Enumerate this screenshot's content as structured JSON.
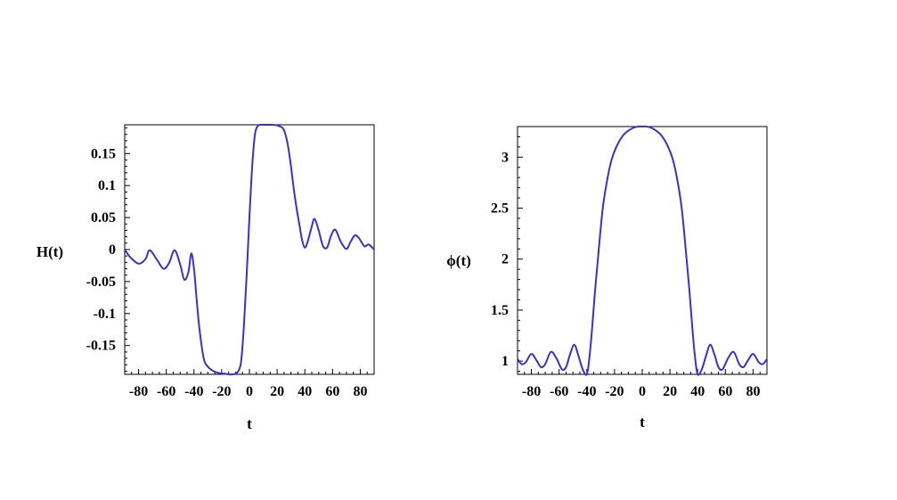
{
  "chart_data": [
    {
      "type": "line",
      "title": "",
      "xlabel": "t",
      "ylabel": "H(t)",
      "xlim": [
        -90,
        90
      ],
      "ylim": [
        -0.195,
        0.195
      ],
      "x_ticks": [
        -80,
        -60,
        -40,
        -20,
        0,
        20,
        40,
        60,
        80
      ],
      "x_tick_labels": [
        "-80",
        "-60",
        "-40",
        "-20",
        "0",
        "20",
        "40",
        "60",
        "80"
      ],
      "y_ticks": [
        -0.15,
        -0.1,
        -0.05,
        0,
        0.05,
        0.1,
        0.15
      ],
      "y_tick_labels": [
        "-0.15",
        "-0.1",
        "-0.05",
        "0",
        "0.05",
        "0.1",
        "0.15"
      ],
      "grid": false,
      "line_color": "#3b2fd0",
      "series": [
        {
          "x": [
            -90,
            -86,
            -80,
            -75,
            -72,
            -67,
            -62,
            -58,
            -54,
            -50,
            -47,
            -44,
            -42,
            -40,
            -38,
            -36,
            -33,
            -30,
            -26,
            -22,
            -18,
            -15,
            -12,
            -10,
            -8,
            -6,
            -4,
            -2,
            0,
            2,
            4,
            6,
            8,
            12,
            16,
            20,
            24,
            26,
            28,
            30,
            32,
            34,
            36,
            38,
            40,
            42,
            45,
            47,
            50,
            53,
            56,
            59,
            62,
            66,
            70,
            73,
            76,
            79,
            83,
            86,
            90
          ],
          "y": [
            0.0,
            -0.012,
            -0.022,
            -0.015,
            -0.001,
            -0.015,
            -0.03,
            -0.021,
            -0.001,
            -0.023,
            -0.047,
            -0.035,
            -0.006,
            -0.03,
            -0.08,
            -0.125,
            -0.17,
            -0.183,
            -0.19,
            -0.193,
            -0.194,
            -0.195,
            -0.195,
            -0.194,
            -0.19,
            -0.175,
            -0.12,
            -0.04,
            0.05,
            0.13,
            0.18,
            0.193,
            0.195,
            0.195,
            0.195,
            0.194,
            0.19,
            0.18,
            0.16,
            0.13,
            0.095,
            0.065,
            0.04,
            0.015,
            0.003,
            0.012,
            0.036,
            0.048,
            0.03,
            0.006,
            0.003,
            0.022,
            0.031,
            0.012,
            0.001,
            0.012,
            0.022,
            0.018,
            0.005,
            0.008,
            0.0
          ]
        }
      ]
    },
    {
      "type": "line",
      "title": "",
      "xlabel": "t",
      "ylabel": "ϕ(t)",
      "xlim": [
        -90,
        90
      ],
      "ylim": [
        0.87,
        3.3
      ],
      "x_ticks": [
        -80,
        -60,
        -40,
        -20,
        0,
        20,
        40,
        60,
        80
      ],
      "x_tick_labels": [
        "-80",
        "-60",
        "-40",
        "-20",
        "0",
        "20",
        "40",
        "60",
        "80"
      ],
      "y_ticks": [
        1,
        1.5,
        2,
        2.5,
        3
      ],
      "y_tick_labels": [
        "1",
        "1.5",
        "2",
        "2.5",
        "3"
      ],
      "grid": false,
      "line_color": "#3b2fd0",
      "series": [
        {
          "x": [
            -90,
            -87,
            -84,
            -80,
            -76,
            -73,
            -70,
            -66,
            -62,
            -58,
            -55,
            -52,
            -49,
            -46,
            -43,
            -40,
            -38,
            -36,
            -34,
            -32,
            -30,
            -28,
            -25,
            -22,
            -18,
            -14,
            -10,
            -6,
            -3,
            0,
            3,
            6,
            10,
            14,
            18,
            22,
            25,
            28,
            30,
            32,
            34,
            36,
            38,
            40,
            43,
            46,
            49,
            52,
            55,
            58,
            62,
            66,
            70,
            73,
            76,
            80,
            84,
            87,
            90
          ],
          "y": [
            1.02,
            0.97,
            0.99,
            1.07,
            1.0,
            0.94,
            0.97,
            1.09,
            1.03,
            0.92,
            0.94,
            1.07,
            1.16,
            1.05,
            0.92,
            0.87,
            1.05,
            1.35,
            1.7,
            2.0,
            2.3,
            2.55,
            2.8,
            2.98,
            3.12,
            3.21,
            3.26,
            3.29,
            3.3,
            3.3,
            3.3,
            3.29,
            3.26,
            3.21,
            3.12,
            2.98,
            2.8,
            2.55,
            2.3,
            2.0,
            1.7,
            1.35,
            1.05,
            0.87,
            0.92,
            1.05,
            1.16,
            1.07,
            0.94,
            0.92,
            1.03,
            1.09,
            0.97,
            0.94,
            1.0,
            1.07,
            0.99,
            0.97,
            1.02
          ]
        }
      ]
    }
  ]
}
